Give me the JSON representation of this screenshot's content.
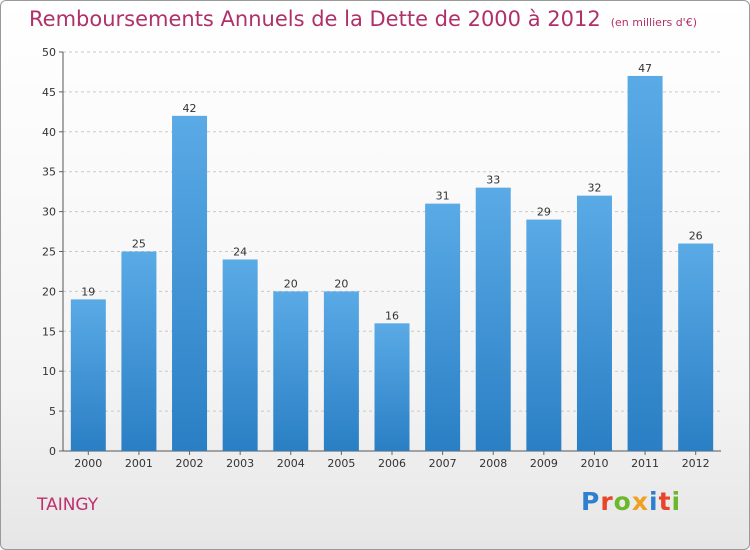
{
  "header": {
    "title": "Remboursements Annuels de la Dette de 2000 à 2012",
    "subtitle": "(en milliers d'€)"
  },
  "footer": {
    "town": "TAINGY",
    "logo_text": "Proxiti"
  },
  "colors": {
    "title": "#b0306a",
    "bar_top": "#5aaae6",
    "bar_bottom": "#2a7fc4",
    "logo_letters": [
      "#2f7fd0",
      "#e8452a",
      "#6bb82a",
      "#f0a020",
      "#2f7fd0",
      "#e8452a",
      "#6bb82a"
    ]
  },
  "chart_data": {
    "type": "bar",
    "title": "Remboursements Annuels de la Dette de 2000 à 2012",
    "subtitle": "(en milliers d'€)",
    "categories": [
      "2000",
      "2001",
      "2002",
      "2003",
      "2004",
      "2005",
      "2006",
      "2007",
      "2008",
      "2009",
      "2010",
      "2011",
      "2012"
    ],
    "values": [
      19,
      25,
      42,
      24,
      20,
      20,
      16,
      31,
      33,
      29,
      32,
      47,
      26
    ],
    "data_labels": [
      "19",
      "25",
      "42",
      "24",
      "20",
      "20",
      "16",
      "31",
      "33",
      "29",
      "32",
      "47",
      "26"
    ],
    "ylim": [
      0,
      50
    ],
    "yticks": [
      0,
      5,
      10,
      15,
      20,
      25,
      30,
      35,
      40,
      45,
      50
    ],
    "ytick_labels": [
      "0",
      "5",
      "10",
      "15",
      "20",
      "25",
      "30",
      "35",
      "40",
      "45",
      "50"
    ],
    "xlabel": "",
    "ylabel": "",
    "grid": "horizontal dashed",
    "legend": "none"
  }
}
